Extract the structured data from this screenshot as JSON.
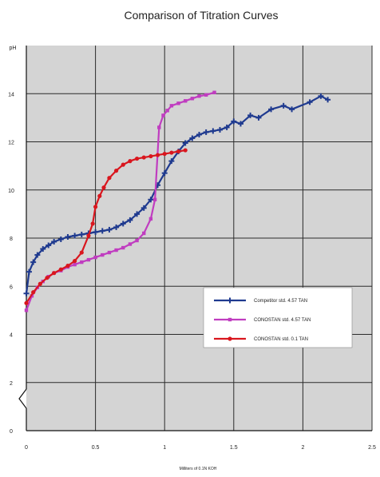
{
  "chart_data": {
    "type": "line",
    "title": "Comparison of Titration Curves",
    "xlabel": "Milliters of 0.1N KOH",
    "ylabel": "pH",
    "xlim": [
      0,
      2.5
    ],
    "ylim": [
      0,
      16
    ],
    "x_ticks": [
      "0",
      "0.5",
      "1",
      "1.5",
      "2",
      "2.5"
    ],
    "y_ticks": [
      "0",
      "2",
      "4",
      "6",
      "8",
      "10",
      "12",
      "14"
    ],
    "axis_break": true,
    "grid": true,
    "legend_position": "right",
    "series": [
      {
        "name": "Competitor std. 4.57 TAN",
        "color": "#1f3a8f",
        "marker": "plus",
        "points": [
          [
            0,
            5.7
          ],
          [
            0.02,
            6.6
          ],
          [
            0.05,
            7.0
          ],
          [
            0.08,
            7.3
          ],
          [
            0.12,
            7.55
          ],
          [
            0.16,
            7.7
          ],
          [
            0.2,
            7.85
          ],
          [
            0.25,
            7.95
          ],
          [
            0.3,
            8.05
          ],
          [
            0.35,
            8.1
          ],
          [
            0.4,
            8.15
          ],
          [
            0.45,
            8.2
          ],
          [
            0.5,
            8.25
          ],
          [
            0.55,
            8.3
          ],
          [
            0.6,
            8.35
          ],
          [
            0.65,
            8.45
          ],
          [
            0.7,
            8.6
          ],
          [
            0.75,
            8.75
          ],
          [
            0.8,
            9.0
          ],
          [
            0.85,
            9.25
          ],
          [
            0.9,
            9.6
          ],
          [
            0.95,
            10.2
          ],
          [
            1.0,
            10.7
          ],
          [
            1.05,
            11.2
          ],
          [
            1.1,
            11.6
          ],
          [
            1.15,
            11.95
          ],
          [
            1.2,
            12.15
          ],
          [
            1.25,
            12.3
          ],
          [
            1.3,
            12.4
          ],
          [
            1.35,
            12.45
          ],
          [
            1.4,
            12.5
          ],
          [
            1.45,
            12.6
          ],
          [
            1.5,
            12.85
          ],
          [
            1.55,
            12.75
          ],
          [
            1.62,
            13.1
          ],
          [
            1.68,
            13.0
          ],
          [
            1.77,
            13.35
          ],
          [
            1.86,
            13.5
          ],
          [
            1.92,
            13.35
          ],
          [
            2.05,
            13.65
          ],
          [
            2.13,
            13.9
          ],
          [
            2.18,
            13.75
          ]
        ]
      },
      {
        "name": "CONOSTAN std. 4.57 TAN",
        "color": "#c03dc0",
        "marker": "square",
        "points": [
          [
            0,
            5.0
          ],
          [
            0.04,
            5.6
          ],
          [
            0.08,
            5.95
          ],
          [
            0.12,
            6.2
          ],
          [
            0.16,
            6.4
          ],
          [
            0.2,
            6.55
          ],
          [
            0.25,
            6.65
          ],
          [
            0.3,
            6.8
          ],
          [
            0.35,
            6.9
          ],
          [
            0.4,
            7.0
          ],
          [
            0.45,
            7.1
          ],
          [
            0.5,
            7.2
          ],
          [
            0.55,
            7.3
          ],
          [
            0.6,
            7.4
          ],
          [
            0.65,
            7.5
          ],
          [
            0.7,
            7.6
          ],
          [
            0.75,
            7.75
          ],
          [
            0.8,
            7.9
          ],
          [
            0.85,
            8.2
          ],
          [
            0.9,
            8.8
          ],
          [
            0.93,
            9.6
          ],
          [
            0.96,
            12.6
          ],
          [
            0.99,
            13.1
          ],
          [
            1.02,
            13.3
          ],
          [
            1.05,
            13.5
          ],
          [
            1.1,
            13.6
          ],
          [
            1.15,
            13.7
          ],
          [
            1.2,
            13.8
          ],
          [
            1.25,
            13.9
          ],
          [
            1.3,
            13.95
          ],
          [
            1.36,
            14.05
          ]
        ]
      },
      {
        "name": "CONOSTAN std. 0.1 TAN",
        "color": "#d9161e",
        "marker": "circle",
        "points": [
          [
            0,
            5.3
          ],
          [
            0.05,
            5.75
          ],
          [
            0.1,
            6.1
          ],
          [
            0.15,
            6.35
          ],
          [
            0.2,
            6.55
          ],
          [
            0.25,
            6.7
          ],
          [
            0.3,
            6.85
          ],
          [
            0.35,
            7.05
          ],
          [
            0.4,
            7.4
          ],
          [
            0.45,
            8.1
          ],
          [
            0.48,
            8.6
          ],
          [
            0.5,
            9.3
          ],
          [
            0.53,
            9.75
          ],
          [
            0.56,
            10.1
          ],
          [
            0.6,
            10.5
          ],
          [
            0.65,
            10.8
          ],
          [
            0.7,
            11.05
          ],
          [
            0.75,
            11.2
          ],
          [
            0.8,
            11.3
          ],
          [
            0.85,
            11.35
          ],
          [
            0.9,
            11.4
          ],
          [
            0.95,
            11.45
          ],
          [
            1.0,
            11.5
          ],
          [
            1.05,
            11.55
          ],
          [
            1.1,
            11.6
          ],
          [
            1.15,
            11.65
          ]
        ]
      }
    ]
  }
}
